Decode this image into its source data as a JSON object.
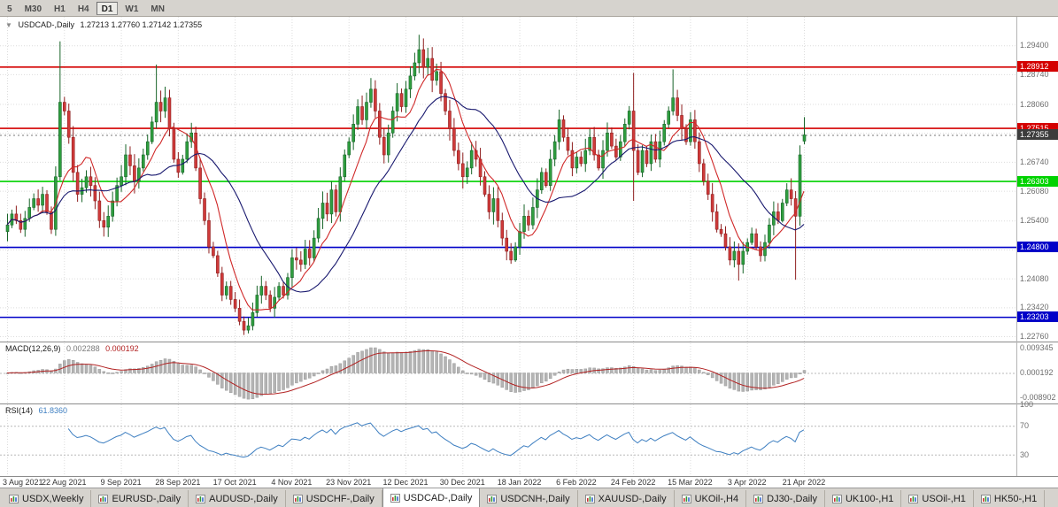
{
  "toolbar": {
    "periods": [
      {
        "label": "5",
        "active": false
      },
      {
        "label": "M30",
        "active": false
      },
      {
        "label": "H1",
        "active": false
      },
      {
        "label": "H4",
        "active": false
      },
      {
        "label": "D1",
        "active": true
      },
      {
        "label": "W1",
        "active": false
      },
      {
        "label": "MN",
        "active": false
      }
    ]
  },
  "chart": {
    "symbol_title": "USDCAD-,Daily",
    "ohlc_text": "1.27213 1.27760 1.27142 1.27355",
    "ohlc": {
      "open": "1.27213",
      "high": "1.27760",
      "low": "1.27142",
      "close": "1.27355"
    },
    "y_axis_labels": [
      {
        "v": 1.294,
        "label": "1.29400"
      },
      {
        "v": 1.2874,
        "label": "1.28740"
      },
      {
        "v": 1.2806,
        "label": "1.28060"
      },
      {
        "v": 1.274,
        "label": ""
      },
      {
        "v": 1.2674,
        "label": "1.26740"
      },
      {
        "v": 1.2608,
        "label": "1.26080"
      },
      {
        "v": 1.254,
        "label": "1.25400"
      },
      {
        "v": 1.2474,
        "label": ""
      },
      {
        "v": 1.2408,
        "label": "1.24080"
      },
      {
        "v": 1.2342,
        "label": "1.23420"
      },
      {
        "v": 1.2276,
        "label": "1.22760"
      }
    ],
    "levels": [
      {
        "price": 1.28912,
        "label": "1.28912",
        "color": "#d40000",
        "style": "solid",
        "name": "resistance-level-upper"
      },
      {
        "price": 1.27515,
        "label": "1.27515",
        "color": "#d40000",
        "style": "solid",
        "name": "resistance-level-lower"
      },
      {
        "price": 1.26303,
        "label": "1.26303",
        "color": "#00d200",
        "style": "solid",
        "name": "support-level-green"
      },
      {
        "price": 1.248,
        "label": "1.24800",
        "color": "#0000c8",
        "style": "solid",
        "name": "support-level-blue-upper"
      },
      {
        "price": 1.23203,
        "label": "1.23203",
        "color": "#0000c8",
        "style": "solid",
        "name": "support-level-blue-lower"
      },
      {
        "price": 1.27355,
        "label": "1.27355",
        "color": "#3c3c3c",
        "style": "dotted",
        "name": "current-price"
      }
    ]
  },
  "macd": {
    "name": "MACD(12,26,9)",
    "value_main": "0.002288",
    "value_signal": "0.000192",
    "axis": [
      {
        "v": 0.009345,
        "label": "0.009345"
      },
      {
        "v": 0.000192,
        "label": "0.000192"
      },
      {
        "v": -0.008902,
        "label": "-0.008902"
      }
    ]
  },
  "rsi": {
    "name": "RSI(14)",
    "value": "61.8360",
    "axis": [
      {
        "v": 100,
        "label": "100"
      },
      {
        "v": 70,
        "label": "70"
      },
      {
        "v": 30,
        "label": "30"
      }
    ],
    "levels": [
      70,
      30
    ]
  },
  "tabs": [
    {
      "label": "USDX,Weekly",
      "active": false
    },
    {
      "label": "EURUSD-,Daily",
      "active": false
    },
    {
      "label": "AUDUSD-,Daily",
      "active": false
    },
    {
      "label": "USDCHF-,Daily",
      "active": false
    },
    {
      "label": "USDCAD-,Daily",
      "active": true
    },
    {
      "label": "USDCNH-,Daily",
      "active": false
    },
    {
      "label": "XAUUSD-,Daily",
      "active": false
    },
    {
      "label": "UKOil-,H4",
      "active": false
    },
    {
      "label": "DJ30-,Daily",
      "active": false
    },
    {
      "label": "UK100-,H1",
      "active": false
    },
    {
      "label": "USOil-,H1",
      "active": false
    },
    {
      "label": "HK50-,H1",
      "active": false
    }
  ],
  "colors": {
    "up_candle": "#2f9e3f",
    "up_border": "#176428",
    "down_candle": "#cf3a3a",
    "down_border": "#8f1f1f",
    "grid": "#dcdcdc",
    "separator": "#8c8c8c",
    "axis_text": "#6e6e6e",
    "ma_fast": "#d02828",
    "ma_slow": "#18186e",
    "macd_histogram": "#b4b4b4",
    "macd_outline": "#9a9a9a",
    "macd_signal": "#b22222",
    "rsi_line": "#3e7fc1",
    "indicator_level": "#b8b8b8",
    "chart_bg": "#ffffff",
    "toolbar_bg": "#d6d3ce"
  },
  "chart_data": {
    "type": "candlestick",
    "symbol": "USDCAD",
    "timeframe": "Daily",
    "title": "USDCAD-,Daily 1.27213 1.27760 1.27142 1.27355",
    "ylim": [
      1.2264,
      1.3005
    ],
    "x_labels": [
      "3 Aug 2021",
      "22 Aug 2021",
      "9 Sep 2021",
      "28 Sep 2021",
      "17 Oct 2021",
      "4 Nov 2021",
      "23 Nov 2021",
      "12 Dec 2021",
      "30 Dec 2021",
      "18 Jan 2022",
      "6 Feb 2022",
      "24 Feb 2022",
      "15 Mar 2022",
      "3 Apr 2022",
      "21 Apr 2022"
    ],
    "x_label_indices": [
      0,
      13,
      26,
      39,
      52,
      65,
      78,
      91,
      104,
      117,
      130,
      143,
      156,
      169,
      182
    ],
    "first_open": 1.2515,
    "closes": [
      1.253,
      1.2555,
      1.254,
      1.252,
      1.2545,
      1.257,
      1.259,
      1.2575,
      1.26,
      1.256,
      1.252,
      1.264,
      1.281,
      1.279,
      1.273,
      1.265,
      1.26,
      1.2615,
      1.264,
      1.262,
      1.2585,
      1.254,
      1.2525,
      1.255,
      1.2585,
      1.262,
      1.264,
      1.269,
      1.2665,
      1.263,
      1.266,
      1.269,
      1.272,
      1.2765,
      1.281,
      1.279,
      1.282,
      1.275,
      1.268,
      1.265,
      1.268,
      1.272,
      1.274,
      1.266,
      1.259,
      1.254,
      1.248,
      1.246,
      1.242,
      1.237,
      1.239,
      1.236,
      1.234,
      1.231,
      1.229,
      1.23,
      1.233,
      1.237,
      1.239,
      1.237,
      1.234,
      1.2365,
      1.239,
      1.237,
      1.241,
      1.2455,
      1.245,
      1.244,
      1.2475,
      1.2455,
      1.25,
      1.2545,
      1.258,
      1.2555,
      1.261,
      1.256,
      1.264,
      1.269,
      1.272,
      1.276,
      1.28,
      1.277,
      1.281,
      1.284,
      1.279,
      1.273,
      1.269,
      1.274,
      1.279,
      1.283,
      1.28,
      1.284,
      1.287,
      1.29,
      1.293,
      1.289,
      1.291,
      1.286,
      1.288,
      1.283,
      1.279,
      1.275,
      1.27,
      1.267,
      1.264,
      1.266,
      1.27,
      1.268,
      1.264,
      1.26,
      1.256,
      1.259,
      1.254,
      1.25,
      1.247,
      1.245,
      1.248,
      1.2515,
      1.255,
      1.253,
      1.257,
      1.261,
      1.265,
      1.262,
      1.268,
      1.272,
      1.277,
      1.273,
      1.27,
      1.266,
      1.2685,
      1.267,
      1.27,
      1.273,
      1.269,
      1.266,
      1.27,
      1.274,
      1.271,
      1.2685,
      1.272,
      1.276,
      1.279,
      1.27,
      1.265,
      1.27,
      1.267,
      1.272,
      1.268,
      1.272,
      1.276,
      1.279,
      1.282,
      1.278,
      1.275,
      1.272,
      1.277,
      1.272,
      1.267,
      1.263,
      1.26,
      1.256,
      1.252,
      1.251,
      1.248,
      1.245,
      1.247,
      1.244,
      1.247,
      1.249,
      1.251,
      1.248,
      1.246,
      1.249,
      1.253,
      1.256,
      1.254,
      1.258,
      1.261,
      1.259,
      1.255,
      1.269,
      1.2736
    ],
    "spikes": {
      "12": {
        "h": 1.2949
      },
      "34": {
        "h": 1.2896
      },
      "54": {
        "l": 1.2287
      },
      "94": {
        "h": 1.2964
      },
      "143": {
        "h": 1.2877,
        "l": 1.2585
      },
      "152": {
        "h": 1.2885
      },
      "167": {
        "l": 1.2403
      },
      "180": {
        "l": 1.2405
      }
    },
    "last_candle": {
      "open": 1.27213,
      "high": 1.2776,
      "low": 1.27142,
      "close": 1.27355
    },
    "overlays": [
      {
        "name": "ma-fast",
        "period": 8,
        "color": "#d02828"
      },
      {
        "name": "ma-slow",
        "period": 21,
        "color": "#18186e"
      }
    ],
    "indicators": [
      {
        "name": "MACD",
        "params": [
          12,
          26,
          9
        ],
        "ylim": [
          -0.0105,
          0.0105
        ]
      },
      {
        "name": "RSI",
        "params": [
          14
        ],
        "levels": [
          70,
          30
        ],
        "ylim": [
          0,
          100
        ]
      }
    ]
  }
}
